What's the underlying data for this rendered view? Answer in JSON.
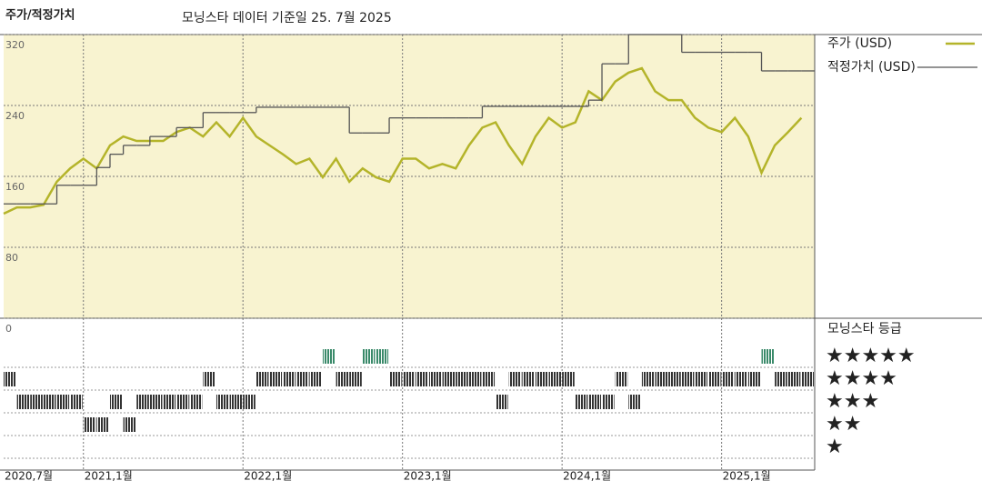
{
  "chart_data": {
    "type": "line",
    "title": "주가/적정가치",
    "subtitle": "모닝스타 데이터 기준일 25. 7월 2025",
    "x": [
      "2020-07",
      "2020-08",
      "2020-09",
      "2020-10",
      "2020-11",
      "2020-12",
      "2021-01",
      "2021-02",
      "2021-03",
      "2021-04",
      "2021-05",
      "2021-06",
      "2021-07",
      "2021-08",
      "2021-09",
      "2021-10",
      "2021-11",
      "2021-12",
      "2022-01",
      "2022-02",
      "2022-03",
      "2022-04",
      "2022-05",
      "2022-06",
      "2022-07",
      "2022-08",
      "2022-09",
      "2022-10",
      "2022-11",
      "2022-12",
      "2023-01",
      "2023-02",
      "2023-03",
      "2023-04",
      "2023-05",
      "2023-06",
      "2023-07",
      "2023-08",
      "2023-09",
      "2023-10",
      "2023-11",
      "2023-12",
      "2024-01",
      "2024-02",
      "2024-03",
      "2024-04",
      "2024-05",
      "2024-06",
      "2024-07",
      "2024-08",
      "2024-09",
      "2024-10",
      "2024-11",
      "2024-12",
      "2025-01",
      "2025-02",
      "2025-03",
      "2025-04",
      "2025-05",
      "2025-06",
      "2025-07"
    ],
    "xlim": [
      "2020-07",
      "2025-08"
    ],
    "xticks": [
      {
        "value": "2020-07",
        "label": "2020,7월"
      },
      {
        "value": "2021-01",
        "label": "2021,1월"
      },
      {
        "value": "2022-01",
        "label": "2022,1월"
      },
      {
        "value": "2023-01",
        "label": "2023,1월"
      },
      {
        "value": "2024-01",
        "label": "2024,1월"
      },
      {
        "value": "2025-01",
        "label": "2025,1월"
      }
    ],
    "ylim": [
      0,
      320
    ],
    "yticks": [
      0,
      80,
      160,
      240,
      320
    ],
    "grid": true,
    "series": [
      {
        "name": "주가 (USD)",
        "color": "#b4b42a",
        "values": [
          118,
          125,
          125,
          128,
          154,
          169,
          180,
          169,
          195,
          205,
          200,
          200,
          200,
          210,
          215,
          205,
          221,
          205,
          226,
          205,
          195,
          185,
          174,
          180,
          159,
          180,
          154,
          169,
          159,
          154,
          180,
          180,
          169,
          174,
          169,
          195,
          215,
          221,
          195,
          174,
          205,
          226,
          215,
          221,
          256,
          246,
          267,
          277,
          282,
          256,
          246,
          246,
          226,
          215,
          210,
          226,
          205,
          164,
          195,
          210,
          226
        ]
      },
      {
        "name": "적정가치 (USD)",
        "color": "#555555",
        "step": true,
        "values": [
          129,
          129,
          129,
          129,
          150,
          150,
          150,
          170,
          185,
          195,
          195,
          205,
          205,
          215,
          215,
          232,
          232,
          232,
          232,
          238,
          238,
          238,
          238,
          238,
          238,
          238,
          209,
          209,
          209,
          226,
          226,
          226,
          226,
          226,
          226,
          226,
          239,
          239,
          239,
          239,
          239,
          239,
          239,
          239,
          246,
          287,
          287,
          320,
          320,
          320,
          320,
          300,
          300,
          300,
          300,
          300,
          300,
          279,
          279,
          279,
          279
        ]
      }
    ],
    "rating": {
      "title": "모닝스타 등급",
      "levels": [
        {
          "value": 5,
          "label": "★★★★★"
        },
        {
          "value": 4,
          "label": "★★★★"
        },
        {
          "value": 3,
          "label": "★★★"
        },
        {
          "value": 2,
          "label": "★★"
        },
        {
          "value": 1,
          "label": "★"
        }
      ],
      "colors": {
        "high": "#3a8a6a",
        "normal": "#333333"
      },
      "values": [
        4,
        3,
        3,
        3,
        3,
        3,
        2,
        2,
        3,
        2,
        3,
        3,
        3,
        3,
        3,
        4,
        3,
        3,
        3,
        4,
        4,
        4,
        4,
        4,
        5,
        4,
        4,
        5,
        5,
        4,
        4,
        4,
        4,
        4,
        4,
        4,
        4,
        3,
        4,
        4,
        4,
        4,
        4,
        3,
        3,
        3,
        4,
        3,
        4,
        4,
        4,
        4,
        4,
        4,
        4,
        4,
        4,
        5,
        4,
        4,
        4
      ]
    }
  }
}
